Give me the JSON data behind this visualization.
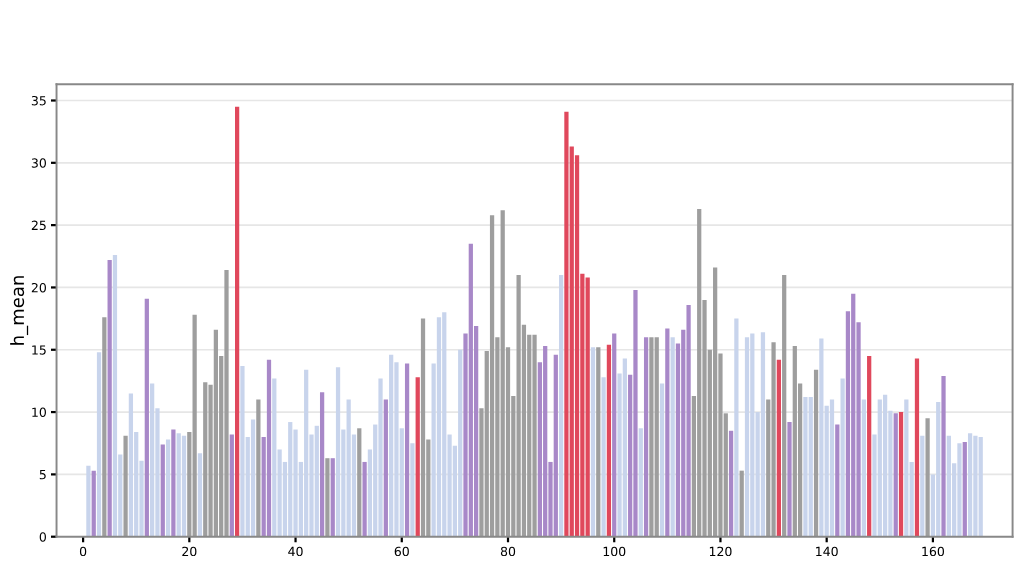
{
  "chart_data": {
    "type": "bar",
    "ylabel": "h_mean",
    "x": [
      1,
      2,
      3,
      4,
      5,
      6,
      7,
      8,
      9,
      10,
      11,
      12,
      13,
      14,
      15,
      16,
      17,
      18,
      19,
      20,
      21,
      22,
      23,
      24,
      25,
      26,
      27,
      28,
      29,
      30,
      31,
      32,
      33,
      34,
      35,
      36,
      37,
      38,
      39,
      40,
      41,
      42,
      43,
      44,
      45,
      46,
      47,
      48,
      49,
      50,
      51,
      52,
      53,
      54,
      55,
      56,
      57,
      58,
      59,
      60,
      61,
      62,
      63,
      64,
      65,
      66,
      67,
      68,
      69,
      70,
      71,
      72,
      73,
      74,
      75,
      76,
      77,
      78,
      79,
      80,
      81,
      82,
      83,
      84,
      85,
      86,
      87,
      88,
      89,
      90,
      91,
      92,
      93,
      94,
      95,
      96,
      97,
      98,
      99,
      100,
      101,
      102,
      103,
      104,
      105,
      106,
      107,
      108,
      109,
      110,
      111,
      112,
      113,
      114,
      115,
      116,
      117,
      118,
      119,
      120,
      121,
      122,
      123,
      124,
      125,
      126,
      127,
      128,
      129,
      130,
      131,
      132,
      133,
      134,
      135,
      136,
      137,
      138,
      139,
      140,
      141,
      142,
      143,
      144,
      145,
      146,
      147,
      148,
      149,
      150,
      151,
      152,
      153,
      154,
      155,
      156,
      157,
      158,
      159,
      160,
      161,
      162,
      163,
      164,
      165,
      166,
      167,
      168,
      169
    ],
    "values": [
      5.7,
      5.3,
      14.8,
      17.6,
      22.2,
      22.6,
      6.6,
      8.1,
      11.5,
      8.4,
      6.1,
      19.1,
      12.3,
      10.3,
      7.4,
      7.8,
      8.6,
      8.3,
      8.1,
      8.4,
      17.8,
      6.7,
      12.4,
      12.2,
      16.6,
      14.5,
      21.4,
      8.2,
      34.5,
      13.7,
      8.0,
      9.4,
      11.0,
      8.0,
      14.2,
      12.7,
      7.0,
      6.0,
      9.2,
      8.6,
      6.0,
      13.4,
      8.2,
      8.9,
      11.6,
      6.3,
      6.3,
      13.6,
      8.6,
      11.0,
      8.2,
      8.7,
      6.0,
      7.0,
      9.0,
      12.7,
      11.0,
      14.6,
      14.0,
      8.7,
      13.9,
      7.5,
      12.8,
      17.5,
      7.8,
      13.9,
      17.6,
      18.0,
      8.2,
      7.3,
      15.0,
      16.3,
      23.5,
      16.9,
      10.3,
      14.9,
      25.8,
      16.0,
      26.2,
      15.2,
      11.3,
      21.0,
      17.0,
      16.2,
      16.2,
      14.0,
      15.3,
      6.0,
      14.6,
      21.0,
      34.1,
      31.3,
      30.6,
      21.1,
      20.8,
      15.2,
      15.2,
      12.8,
      15.4,
      16.3,
      13.1,
      14.3,
      13.0,
      19.8,
      8.7,
      16.0,
      16.0,
      16.0,
      12.3,
      16.7,
      16.0,
      15.5,
      16.6,
      18.6,
      11.3,
      26.3,
      19.0,
      15.0,
      21.6,
      14.7,
      9.9,
      8.5,
      17.5,
      5.3,
      16.0,
      16.3,
      10.0,
      16.4,
      11.0,
      15.6,
      14.2,
      21.0,
      9.2,
      15.3,
      12.3,
      11.2,
      11.2,
      13.4,
      15.9,
      10.5,
      11.0,
      9.0,
      12.7,
      18.1,
      19.5,
      17.2,
      11.0,
      14.5,
      8.2,
      11.0,
      11.4,
      10.1,
      9.9,
      10.0,
      11.0,
      6.0,
      14.3,
      8.1,
      9.5,
      5.0,
      10.8,
      12.9,
      8.1,
      5.9,
      7.5,
      7.6,
      8.3,
      8.1,
      8.0
    ],
    "colors": [
      "#c8d4ec",
      "#a888c8",
      "#c8d4ec",
      "#9e9e9e",
      "#a888c8",
      "#c8d4ec",
      "#c8d4ec",
      "#9e9e9e",
      "#c8d4ec",
      "#c8d4ec",
      "#c8d4ec",
      "#a888c8",
      "#c8d4ec",
      "#c8d4ec",
      "#a888c8",
      "#c8d4ec",
      "#a888c8",
      "#c8d4ec",
      "#c8d4ec",
      "#9e9e9e",
      "#9e9e9e",
      "#c8d4ec",
      "#9e9e9e",
      "#9e9e9e",
      "#9e9e9e",
      "#9e9e9e",
      "#9e9e9e",
      "#a888c8",
      "#e0485c",
      "#c8d4ec",
      "#c8d4ec",
      "#c8d4ec",
      "#9e9e9e",
      "#a888c8",
      "#a888c8",
      "#c8d4ec",
      "#c8d4ec",
      "#c8d4ec",
      "#c8d4ec",
      "#c8d4ec",
      "#c8d4ec",
      "#c8d4ec",
      "#c8d4ec",
      "#c8d4ec",
      "#a888c8",
      "#9e9e9e",
      "#a888c8",
      "#c8d4ec",
      "#c8d4ec",
      "#c8d4ec",
      "#c8d4ec",
      "#9e9e9e",
      "#a888c8",
      "#c8d4ec",
      "#c8d4ec",
      "#c8d4ec",
      "#a888c8",
      "#c8d4ec",
      "#c8d4ec",
      "#c8d4ec",
      "#a888c8",
      "#c8d4ec",
      "#e0485c",
      "#9e9e9e",
      "#9e9e9e",
      "#c8d4ec",
      "#c8d4ec",
      "#c8d4ec",
      "#c8d4ec",
      "#c8d4ec",
      "#c8d4ec",
      "#a888c8",
      "#a888c8",
      "#a888c8",
      "#9e9e9e",
      "#9e9e9e",
      "#9e9e9e",
      "#9e9e9e",
      "#9e9e9e",
      "#9e9e9e",
      "#9e9e9e",
      "#9e9e9e",
      "#9e9e9e",
      "#9e9e9e",
      "#9e9e9e",
      "#a888c8",
      "#a888c8",
      "#a888c8",
      "#a888c8",
      "#c8d4ec",
      "#e0485c",
      "#e0485c",
      "#e0485c",
      "#e0485c",
      "#e0485c",
      "#c8d4ec",
      "#9e9e9e",
      "#c8d4ec",
      "#e0485c",
      "#a888c8",
      "#c8d4ec",
      "#c8d4ec",
      "#a888c8",
      "#a888c8",
      "#c8d4ec",
      "#a888c8",
      "#9e9e9e",
      "#9e9e9e",
      "#c8d4ec",
      "#a888c8",
      "#c8d4ec",
      "#a888c8",
      "#a888c8",
      "#a888c8",
      "#9e9e9e",
      "#9e9e9e",
      "#9e9e9e",
      "#9e9e9e",
      "#9e9e9e",
      "#9e9e9e",
      "#9e9e9e",
      "#a888c8",
      "#c8d4ec",
      "#9e9e9e",
      "#c8d4ec",
      "#c8d4ec",
      "#c8d4ec",
      "#c8d4ec",
      "#9e9e9e",
      "#9e9e9e",
      "#e0485c",
      "#9e9e9e",
      "#a888c8",
      "#9e9e9e",
      "#9e9e9e",
      "#c8d4ec",
      "#c8d4ec",
      "#9e9e9e",
      "#c8d4ec",
      "#c8d4ec",
      "#c8d4ec",
      "#a888c8",
      "#c8d4ec",
      "#a888c8",
      "#a888c8",
      "#a888c8",
      "#c8d4ec",
      "#e0485c",
      "#c8d4ec",
      "#c8d4ec",
      "#c8d4ec",
      "#c8d4ec",
      "#a888c8",
      "#e0485c",
      "#c8d4ec",
      "#c8d4ec",
      "#e0485c",
      "#c8d4ec",
      "#9e9e9e",
      "#c8d4ec",
      "#c8d4ec",
      "#a888c8",
      "#c8d4ec",
      "#c8d4ec",
      "#c8d4ec",
      "#a888c8",
      "#c8d4ec",
      "#c8d4ec",
      "#c8d4ec"
    ],
    "xlim": [
      -5,
      175
    ],
    "xticks": [
      0,
      20,
      40,
      60,
      80,
      100,
      120,
      140,
      160
    ],
    "ylim": [
      0,
      36.3
    ],
    "yticks": [
      0,
      5,
      10,
      15,
      20,
      25,
      30,
      35
    ],
    "grid": "y"
  }
}
